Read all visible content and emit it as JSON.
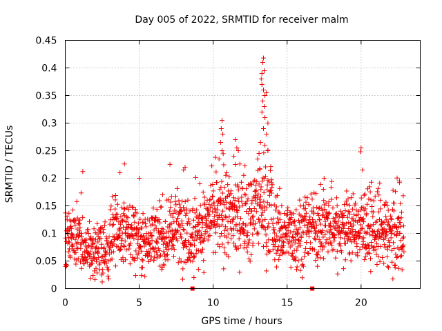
{
  "chart_data": {
    "type": "scatter",
    "title": "Day 005 of 2022, SRMTID for receiver malm",
    "xlabel": "GPS time / hours",
    "ylabel": "SRMTID / TECUs",
    "xlim": [
      0,
      24
    ],
    "ylim": [
      0,
      0.45
    ],
    "xticks": [
      0,
      5,
      10,
      15,
      20
    ],
    "xtick_labels": [
      "0",
      "5",
      "10",
      "15",
      "20"
    ],
    "yticks": [
      0,
      0.05,
      0.1,
      0.15,
      0.2,
      0.25,
      0.3,
      0.35,
      0.4,
      0.45
    ],
    "ytick_labels": [
      "0",
      "0.05",
      "0.1",
      "0.15",
      "0.2",
      "0.25",
      "0.3",
      "0.35",
      "0.4",
      "0.45"
    ],
    "grid": true,
    "marker": "+",
    "marker_color": "#ee0000",
    "axis_color": "#000000",
    "grid_color": "#a0a0a0",
    "x_range_observed": [
      0.0,
      22.9
    ],
    "gap_markers_x": [
      8.6,
      16.7
    ],
    "density_profile": [
      {
        "x0": 0.0,
        "x1": 1.2,
        "base": 0.09,
        "spread": 0.04
      },
      {
        "x0": 1.2,
        "x1": 3.0,
        "base": 0.07,
        "spread": 0.03
      },
      {
        "x0": 3.0,
        "x1": 4.8,
        "base": 0.1,
        "spread": 0.04
      },
      {
        "x0": 4.8,
        "x1": 7.0,
        "base": 0.09,
        "spread": 0.035
      },
      {
        "x0": 7.0,
        "x1": 9.7,
        "base": 0.11,
        "spread": 0.045
      },
      {
        "x0": 9.7,
        "x1": 12.7,
        "base": 0.13,
        "spread": 0.05
      },
      {
        "x0": 12.7,
        "x1": 14.0,
        "base": 0.15,
        "spread": 0.06
      },
      {
        "x0": 14.0,
        "x1": 16.5,
        "base": 0.1,
        "spread": 0.04
      },
      {
        "x0": 16.5,
        "x1": 18.5,
        "base": 0.11,
        "spread": 0.04
      },
      {
        "x0": 18.5,
        "x1": 20.5,
        "base": 0.11,
        "spread": 0.04
      },
      {
        "x0": 20.5,
        "x1": 22.9,
        "base": 0.1,
        "spread": 0.045
      }
    ],
    "notable_points": [
      {
        "x": 10.6,
        "y": 0.305
      },
      {
        "x": 10.55,
        "y": 0.29
      },
      {
        "x": 10.65,
        "y": 0.28
      },
      {
        "x": 10.5,
        "y": 0.265
      },
      {
        "x": 10.6,
        "y": 0.25
      },
      {
        "x": 10.4,
        "y": 0.235
      },
      {
        "x": 11.5,
        "y": 0.27
      },
      {
        "x": 11.6,
        "y": 0.255
      },
      {
        "x": 11.7,
        "y": 0.25
      },
      {
        "x": 11.4,
        "y": 0.24
      },
      {
        "x": 11.5,
        "y": 0.225
      },
      {
        "x": 13.25,
        "y": 0.38
      },
      {
        "x": 13.3,
        "y": 0.39
      },
      {
        "x": 13.35,
        "y": 0.41
      },
      {
        "x": 13.4,
        "y": 0.418
      },
      {
        "x": 13.45,
        "y": 0.395
      },
      {
        "x": 13.3,
        "y": 0.37
      },
      {
        "x": 13.4,
        "y": 0.36
      },
      {
        "x": 13.5,
        "y": 0.35
      },
      {
        "x": 13.35,
        "y": 0.34
      },
      {
        "x": 13.45,
        "y": 0.33
      },
      {
        "x": 13.6,
        "y": 0.355
      },
      {
        "x": 13.3,
        "y": 0.32
      },
      {
        "x": 13.5,
        "y": 0.31
      },
      {
        "x": 13.7,
        "y": 0.3
      },
      {
        "x": 13.4,
        "y": 0.29
      },
      {
        "x": 13.6,
        "y": 0.28
      },
      {
        "x": 13.2,
        "y": 0.265
      },
      {
        "x": 13.5,
        "y": 0.26
      },
      {
        "x": 13.7,
        "y": 0.25
      },
      {
        "x": 13.1,
        "y": 0.245
      },
      {
        "x": 20.0,
        "y": 0.255
      },
      {
        "x": 19.95,
        "y": 0.248
      },
      {
        "x": 20.1,
        "y": 0.215
      },
      {
        "x": 4.0,
        "y": 0.226
      },
      {
        "x": 3.7,
        "y": 0.21
      },
      {
        "x": 8.1,
        "y": 0.22
      },
      {
        "x": 8.0,
        "y": 0.215
      },
      {
        "x": 5.0,
        "y": 0.2
      },
      {
        "x": 8.7,
        "y": 0.02
      },
      {
        "x": 2.5,
        "y": 0.012
      },
      {
        "x": 9.0,
        "y": 0.035
      },
      {
        "x": 17.5,
        "y": 0.2
      },
      {
        "x": 22.6,
        "y": 0.195
      }
    ]
  }
}
